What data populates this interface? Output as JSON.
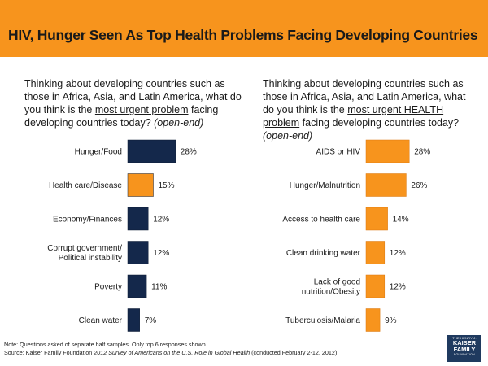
{
  "header": {
    "title": "HIV, Hunger Seen As Top Health Problems Facing Developing Countries"
  },
  "left_question": {
    "pre": "Thinking about developing countries such as those in Africa, Asia, and Latin America, what do you think is the ",
    "underlined": "most urgent problem",
    "post": " facing developing countries today? ",
    "tag": "(open-end)"
  },
  "right_question": {
    "pre": "Thinking about developing countries such as those in Africa, Asia, and Latin America, what do you think is the ",
    "underlined": "most urgent HEALTH problem",
    "post": " facing developing countries today? ",
    "tag": "(open-end)"
  },
  "colors": {
    "accent": "#f7941d",
    "navy": "#14284b",
    "orange_bar": "#f7941d"
  },
  "chart_data": [
    {
      "type": "bar",
      "orientation": "horizontal",
      "title": "Most urgent problem",
      "categories": [
        [
          "Hunger/Food"
        ],
        [
          "Health care/Disease"
        ],
        [
          "Economy/Finances"
        ],
        [
          "Corrupt government/",
          "Political instability"
        ],
        [
          "Poverty"
        ],
        [
          "Clean water"
        ]
      ],
      "values": [
        28,
        15,
        12,
        12,
        11,
        7
      ],
      "value_suffix": "%",
      "bar_colors": [
        "#14284b",
        "#f7941d",
        "#14284b",
        "#14284b",
        "#14284b",
        "#14284b"
      ]
    },
    {
      "type": "bar",
      "orientation": "horizontal",
      "title": "Most urgent health problem",
      "categories": [
        [
          "AIDS or HIV"
        ],
        [
          "Hunger/Malnutrition"
        ],
        [
          "Access to health care"
        ],
        [
          "Clean drinking water"
        ],
        [
          "Lack of good",
          "nutrition/Obesity"
        ],
        [
          "Tuberculosis/Malaria"
        ]
      ],
      "values": [
        28,
        26,
        14,
        12,
        12,
        9
      ],
      "value_suffix": "%",
      "bar_colors": [
        "#f7941d",
        "#f7941d",
        "#f7941d",
        "#f7941d",
        "#f7941d",
        "#f7941d"
      ]
    }
  ],
  "footer": {
    "note": "Note: Questions asked of separate half samples. Only top 6 responses shown.",
    "source_pre": "Source: Kaiser Family Foundation ",
    "source_title": "2012 Survey of Americans on the U.S. Role in Global Health",
    "source_post": " (conducted February 2-12, 2012)"
  },
  "logo": {
    "line1": "THE HENRY J.",
    "line2": "KAISER",
    "line3": "FAMILY",
    "line4": "FOUNDATION"
  }
}
